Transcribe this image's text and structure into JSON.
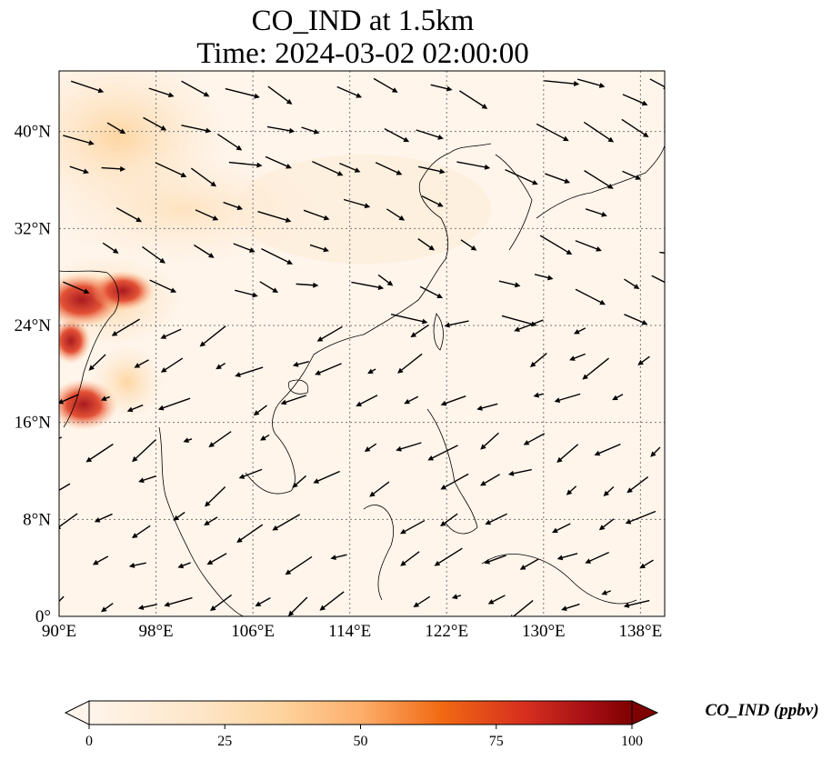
{
  "title_line1": "CO_IND at 1.5km",
  "title_line2": "Time: 2024-03-02 02:00:00",
  "map": {
    "lon_range": [
      90,
      140
    ],
    "lat_range": [
      0,
      45
    ],
    "lon_ticks": [
      "90°E",
      "98°E",
      "106°E",
      "114°E",
      "122°E",
      "130°E",
      "138°E"
    ],
    "lat_ticks": [
      "0°",
      "8°N",
      "16°N",
      "24°N",
      "32°N",
      "40°N"
    ],
    "gridlines": "dotted",
    "background_color": "#fff5eb"
  },
  "colorbar": {
    "label": "CO_IND (ppbv)",
    "range": [
      0,
      100
    ],
    "ticks": [
      "0",
      "25",
      "50",
      "75",
      "100"
    ],
    "colormap": [
      "#fff5eb",
      "#fdd49e",
      "#fdbb84",
      "#fc8d59",
      "#ef6548",
      "#d7301f",
      "#990000",
      "#7f0000"
    ]
  }
}
